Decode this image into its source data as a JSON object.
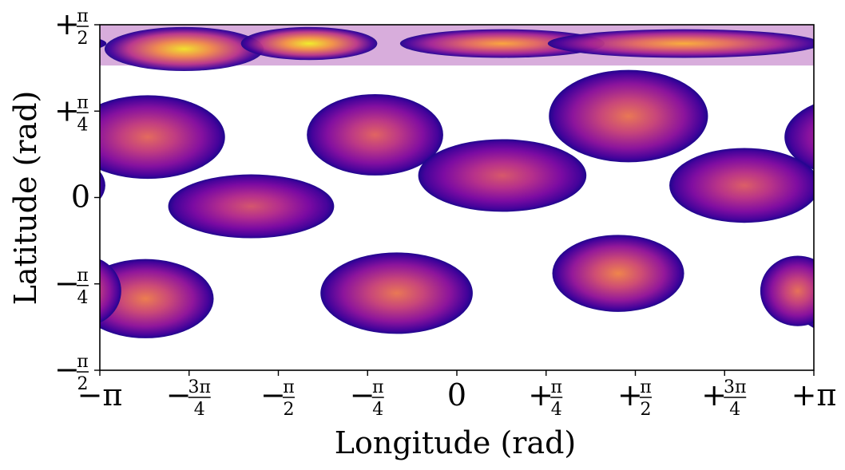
{
  "chart_data": {
    "type": "heatmap",
    "title": "",
    "xlabel": "Longitude (rad)",
    "ylabel": "Latitude (rad)",
    "xlim": [
      -3.1416,
      3.1416
    ],
    "ylim": [
      -1.5708,
      1.5708
    ],
    "grid": false,
    "x_ticks": [
      {
        "value": -3.1416,
        "text": "−π"
      },
      {
        "value": -2.3562,
        "text": "−3π/4"
      },
      {
        "value": -1.5708,
        "text": "−π/2"
      },
      {
        "value": -0.7854,
        "text": "−π/4"
      },
      {
        "value": 0,
        "text": "0"
      },
      {
        "value": 0.7854,
        "text": "+π/4"
      },
      {
        "value": 1.5708,
        "text": "+π/2"
      },
      {
        "value": 2.3562,
        "text": "+3π/4"
      },
      {
        "value": 3.1416,
        "text": "+π"
      }
    ],
    "y_ticks": [
      {
        "value": 1.5708,
        "text": "+π/2"
      },
      {
        "value": 0.7854,
        "text": "+π/4"
      },
      {
        "value": 0,
        "text": "0"
      },
      {
        "value": -0.7854,
        "text": "−π/4"
      },
      {
        "value": -1.5708,
        "text": "−π/2"
      }
    ],
    "colormap": [
      "#0d0887",
      "#6a00a8",
      "#b12a90",
      "#e16462",
      "#fca636",
      "#f0f921"
    ],
    "regions": [
      {
        "band": "north",
        "lon": -2.72,
        "lat": 0.55,
        "rx": 0.68,
        "ry": 0.38,
        "peak": 0.62
      },
      {
        "band": "north",
        "lon": -0.72,
        "lat": 0.57,
        "rx": 0.6,
        "ry": 0.37,
        "peak": 0.6
      },
      {
        "band": "north",
        "lon": 1.51,
        "lat": 0.74,
        "rx": 0.7,
        "ry": 0.42,
        "peak": 0.66
      },
      {
        "band": "mid",
        "lon": -1.81,
        "lat": -0.08,
        "rx": 0.73,
        "ry": 0.29,
        "peak": 0.55
      },
      {
        "band": "mid",
        "lon": 0.4,
        "lat": 0.2,
        "rx": 0.74,
        "ry": 0.33,
        "peak": 0.56
      },
      {
        "band": "mid",
        "lon": 2.53,
        "lat": 0.11,
        "rx": 0.66,
        "ry": 0.34,
        "peak": 0.58
      },
      {
        "band": "south",
        "lon": -2.74,
        "lat": -0.92,
        "rx": 0.6,
        "ry": 0.36,
        "peak": 0.68
      },
      {
        "band": "south",
        "lon": -0.53,
        "lat": -0.87,
        "rx": 0.67,
        "ry": 0.37,
        "peak": 0.66
      },
      {
        "band": "south",
        "lon": 1.42,
        "lat": -0.69,
        "rx": 0.58,
        "ry": 0.35,
        "peak": 0.7
      },
      {
        "band": "south",
        "lon": 3.0,
        "lat": -0.85,
        "rx": 0.33,
        "ry": 0.32,
        "peak": 0.64
      },
      {
        "band": "north-cap",
        "lon": -2.4,
        "lat": 1.35,
        "rx": 0.7,
        "ry": 0.2,
        "peak": 0.95
      },
      {
        "band": "north-cap",
        "lon": -1.3,
        "lat": 1.4,
        "rx": 0.6,
        "ry": 0.15,
        "peak": 0.98
      },
      {
        "band": "north-cap",
        "lon": 0.4,
        "lat": 1.4,
        "rx": 0.9,
        "ry": 0.13,
        "peak": 0.8
      },
      {
        "band": "north-cap",
        "lon": 2.0,
        "lat": 1.4,
        "rx": 1.2,
        "ry": 0.13,
        "peak": 0.82
      }
    ]
  }
}
